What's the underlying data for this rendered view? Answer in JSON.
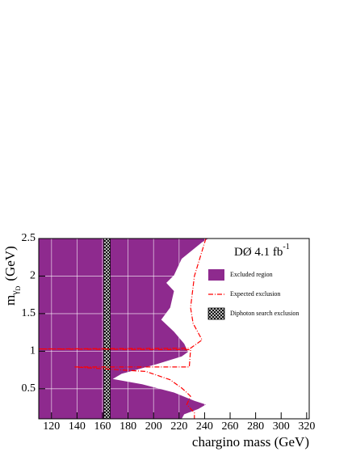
{
  "chart_data": {
    "type": "exclusion",
    "annotation": [
      "DØ 4.1 fb",
      "-1"
    ],
    "xlabel": "chargino mass (GeV)",
    "ylabel": [
      "m",
      "γ",
      "D",
      "(GeV)"
    ],
    "xlim": [
      110,
      322
    ],
    "ylim": [
      0.1,
      2.5
    ],
    "xticks": [
      120,
      140,
      160,
      180,
      200,
      220,
      240,
      260,
      280,
      300,
      320
    ],
    "yticks": [
      0.5,
      1,
      1.5,
      2,
      2.5
    ],
    "grid": true,
    "grid_color": "#ffffff",
    "series": [
      {
        "name": "Excluded region",
        "color": "#8e2a8e",
        "x": [
          243,
          238,
          222,
          216,
          210,
          216,
          213,
          206,
          216,
          224,
          227,
          222,
          203,
          184,
          175,
          168,
          191,
          216,
          232,
          241,
          235,
          224,
          222
        ],
        "y": [
          2.5,
          2.45,
          2.23,
          2.01,
          1.91,
          1.8,
          1.58,
          1.42,
          1.26,
          1.1,
          0.99,
          0.93,
          0.83,
          0.74,
          0.7,
          0.63,
          0.56,
          0.45,
          0.34,
          0.29,
          0.23,
          0.16,
          0.1
        ]
      },
      {
        "name": "Expected exclusion",
        "color": "#ff0000",
        "x": [
          241,
          232,
          229,
          231,
          238,
          229,
          110,
          229,
          228,
          138,
          194,
          213,
          222,
          226,
          229,
          226,
          232,
          232
        ],
        "y": [
          2.5,
          2.0,
          1.58,
          1.37,
          1.15,
          1.04,
          1.03,
          1.02,
          0.79,
          0.79,
          0.73,
          0.62,
          0.51,
          0.45,
          0.4,
          0.29,
          0.18,
          0.1
        ]
      },
      {
        "name": "Diphoton search exclusion",
        "color": "#000000",
        "x": [
          161,
          166
        ]
      }
    ]
  }
}
